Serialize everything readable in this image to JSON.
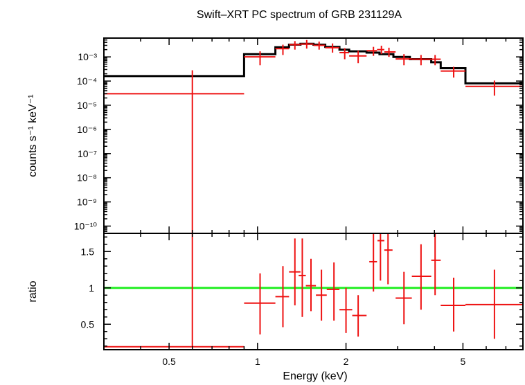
{
  "chart_data": {
    "type": "spectrum",
    "title": "Swift–XRT PC spectrum of GRB 231129A",
    "xlabel": "Energy (keV)",
    "x_scale": "log",
    "xlim": [
      0.3,
      8.0
    ],
    "x_ticks": [
      {
        "value": 0.5,
        "label": "0.5"
      },
      {
        "value": 1,
        "label": "1"
      },
      {
        "value": 2,
        "label": "2"
      },
      {
        "value": 5,
        "label": "5"
      }
    ],
    "panels": [
      {
        "id": "spectrum",
        "ylabel": "counts s⁻¹ keV⁻¹",
        "y_scale": "log",
        "ylim": [
          5e-11,
          0.006
        ],
        "y_ticks": [
          {
            "value": 0.001,
            "label": "10⁻³"
          },
          {
            "value": 0.0001,
            "label": "10⁻⁴"
          },
          {
            "value": 1e-05,
            "label": "10⁻⁵"
          },
          {
            "value": 1e-06,
            "label": "10⁻⁶"
          },
          {
            "value": 1e-07,
            "label": "10⁻⁷"
          },
          {
            "value": 1e-08,
            "label": "10⁻⁸"
          },
          {
            "value": 1e-09,
            "label": "10⁻⁹"
          },
          {
            "value": 1e-10,
            "label": "10⁻¹⁰"
          }
        ],
        "model_color": "#000000",
        "data_color": "#ee1111",
        "model": [
          {
            "x0": 0.3,
            "x1": 0.9,
            "y": 0.00016
          },
          {
            "x0": 0.9,
            "x1": 1.15,
            "y": 0.0013
          },
          {
            "x0": 1.15,
            "x1": 1.28,
            "y": 0.0025
          },
          {
            "x0": 1.28,
            "x1": 1.4,
            "y": 0.0032
          },
          {
            "x0": 1.4,
            "x1": 1.55,
            "y": 0.0035
          },
          {
            "x0": 1.55,
            "x1": 1.7,
            "y": 0.0032
          },
          {
            "x0": 1.7,
            "x1": 1.9,
            "y": 0.0026
          },
          {
            "x0": 1.9,
            "x1": 2.05,
            "y": 0.002
          },
          {
            "x0": 2.05,
            "x1": 2.35,
            "y": 0.0017
          },
          {
            "x0": 2.35,
            "x1": 2.6,
            "y": 0.0015
          },
          {
            "x0": 2.6,
            "x1": 2.9,
            "y": 0.0013
          },
          {
            "x0": 2.9,
            "x1": 3.3,
            "y": 0.001
          },
          {
            "x0": 3.3,
            "x1": 3.9,
            "y": 0.0008
          },
          {
            "x0": 3.9,
            "x1": 4.2,
            "y": 0.0006
          },
          {
            "x0": 4.2,
            "x1": 5.1,
            "y": 0.00034
          },
          {
            "x0": 5.1,
            "x1": 8.0,
            "y": 8e-05
          }
        ],
        "data": [
          {
            "x": 0.6,
            "x0": 0.3,
            "x1": 0.9,
            "y": 3e-05,
            "ylo": 5e-11,
            "yhi": 0.00028
          },
          {
            "x": 1.02,
            "x0": 0.9,
            "x1": 1.15,
            "y": 0.001,
            "ylo": 0.00045,
            "yhi": 0.0017
          },
          {
            "x": 1.22,
            "x0": 1.15,
            "x1": 1.28,
            "y": 0.0022,
            "ylo": 0.0012,
            "yhi": 0.0032
          },
          {
            "x": 1.34,
            "x0": 1.28,
            "x1": 1.4,
            "y": 0.0032,
            "ylo": 0.002,
            "yhi": 0.0045
          },
          {
            "x": 1.47,
            "x0": 1.4,
            "x1": 1.55,
            "y": 0.0034,
            "ylo": 0.0022,
            "yhi": 0.005
          },
          {
            "x": 1.62,
            "x0": 1.55,
            "x1": 1.7,
            "y": 0.003,
            "ylo": 0.002,
            "yhi": 0.0043
          },
          {
            "x": 1.8,
            "x0": 1.7,
            "x1": 1.9,
            "y": 0.0024,
            "ylo": 0.0015,
            "yhi": 0.0036
          },
          {
            "x": 1.98,
            "x0": 1.9,
            "x1": 2.05,
            "y": 0.0015,
            "ylo": 0.0008,
            "yhi": 0.0023
          },
          {
            "x": 2.2,
            "x0": 2.05,
            "x1": 2.35,
            "y": 0.0011,
            "ylo": 0.00055,
            "yhi": 0.0018
          },
          {
            "x": 2.48,
            "x0": 2.35,
            "x1": 2.55,
            "y": 0.0018,
            "ylo": 0.0011,
            "yhi": 0.0026
          },
          {
            "x": 2.64,
            "x0": 2.55,
            "x1": 2.7,
            "y": 0.002,
            "ylo": 0.0013,
            "yhi": 0.0029
          },
          {
            "x": 2.8,
            "x0": 2.7,
            "x1": 2.95,
            "y": 0.0016,
            "ylo": 0.001,
            "yhi": 0.0024
          },
          {
            "x": 3.15,
            "x0": 2.95,
            "x1": 3.35,
            "y": 0.00082,
            "ylo": 0.00045,
            "yhi": 0.0013
          },
          {
            "x": 3.6,
            "x0": 3.35,
            "x1": 3.9,
            "y": 0.0008,
            "ylo": 0.00045,
            "yhi": 0.0012
          },
          {
            "x": 4.02,
            "x0": 3.9,
            "x1": 4.2,
            "y": 0.0008,
            "ylo": 0.00045,
            "yhi": 0.0012
          },
          {
            "x": 4.65,
            "x0": 4.2,
            "x1": 5.1,
            "y": 0.00026,
            "ylo": 0.00014,
            "yhi": 0.00039
          },
          {
            "x": 6.4,
            "x0": 5.1,
            "x1": 8.0,
            "y": 6e-05,
            "ylo": 2.5e-05,
            "yhi": 0.000105
          }
        ]
      },
      {
        "id": "ratio",
        "ylabel": "ratio",
        "y_scale": "linear",
        "ylim": [
          0.15,
          1.75
        ],
        "y_ticks": [
          {
            "value": 0.5,
            "label": "0.5"
          },
          {
            "value": 1,
            "label": "1"
          },
          {
            "value": 1.5,
            "label": "1.5"
          }
        ],
        "reference_line": {
          "y": 1,
          "color": "#22ee22"
        },
        "data_color": "#ee1111",
        "data": [
          {
            "x": 0.6,
            "x0": 0.3,
            "x1": 0.9,
            "y": 0.19,
            "ylo": 0.19,
            "yhi": 1.75
          },
          {
            "x": 1.02,
            "x0": 0.9,
            "x1": 1.15,
            "y": 0.79,
            "ylo": 0.36,
            "yhi": 1.2
          },
          {
            "x": 1.22,
            "x0": 1.15,
            "x1": 1.28,
            "y": 0.88,
            "ylo": 0.46,
            "yhi": 1.3
          },
          {
            "x": 1.34,
            "x0": 1.28,
            "x1": 1.4,
            "y": 1.22,
            "ylo": 0.76,
            "yhi": 1.68
          },
          {
            "x": 1.42,
            "x0": 1.38,
            "x1": 1.46,
            "y": 1.17,
            "ylo": 0.6,
            "yhi": 1.68
          },
          {
            "x": 1.52,
            "x0": 1.46,
            "x1": 1.58,
            "y": 1.03,
            "ylo": 0.68,
            "yhi": 1.4
          },
          {
            "x": 1.65,
            "x0": 1.58,
            "x1": 1.72,
            "y": 0.9,
            "ylo": 0.55,
            "yhi": 1.25
          },
          {
            "x": 1.82,
            "x0": 1.72,
            "x1": 1.9,
            "y": 0.98,
            "ylo": 0.55,
            "yhi": 1.35
          },
          {
            "x": 2.0,
            "x0": 1.9,
            "x1": 2.1,
            "y": 0.7,
            "ylo": 0.38,
            "yhi": 1.0
          },
          {
            "x": 2.2,
            "x0": 2.1,
            "x1": 2.35,
            "y": 0.62,
            "ylo": 0.33,
            "yhi": 0.9
          },
          {
            "x": 2.48,
            "x0": 2.4,
            "x1": 2.55,
            "y": 1.36,
            "ylo": 0.95,
            "yhi": 1.75
          },
          {
            "x": 2.62,
            "x0": 2.56,
            "x1": 2.7,
            "y": 1.65,
            "ylo": 1.1,
            "yhi": 1.75
          },
          {
            "x": 2.78,
            "x0": 2.7,
            "x1": 2.88,
            "y": 1.52,
            "ylo": 1.05,
            "yhi": 1.75
          },
          {
            "x": 3.15,
            "x0": 2.95,
            "x1": 3.35,
            "y": 0.86,
            "ylo": 0.5,
            "yhi": 1.22
          },
          {
            "x": 3.6,
            "x0": 3.35,
            "x1": 3.9,
            "y": 1.16,
            "ylo": 0.7,
            "yhi": 1.6
          },
          {
            "x": 4.02,
            "x0": 3.9,
            "x1": 4.2,
            "y": 1.38,
            "ylo": 0.9,
            "yhi": 1.75
          },
          {
            "x": 4.65,
            "x0": 4.2,
            "x1": 5.1,
            "y": 0.76,
            "ylo": 0.4,
            "yhi": 1.14
          },
          {
            "x": 6.4,
            "x0": 5.1,
            "x1": 8.0,
            "y": 0.77,
            "ylo": 0.3,
            "yhi": 1.25
          }
        ]
      }
    ]
  }
}
